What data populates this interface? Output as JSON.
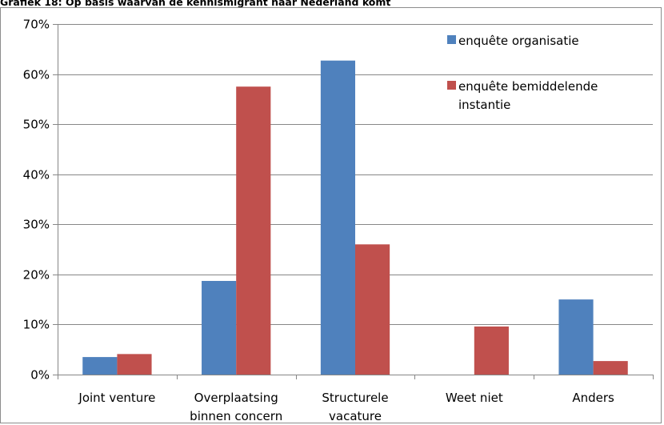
{
  "title": "Grafiek 18: Op basis waarvan de kennismigrant naar Nederland komt",
  "chart_data": {
    "type": "bar",
    "title": "Grafiek 18: Op basis waarvan de kennismigrant naar Nederland komt",
    "xlabel": "",
    "ylabel": "",
    "ylim": [
      0,
      70
    ],
    "y_ticks": [
      "0%",
      "10%",
      "20%",
      "30%",
      "40%",
      "50%",
      "60%",
      "70%"
    ],
    "y_tick_values": [
      0,
      10,
      20,
      30,
      40,
      50,
      60,
      70
    ],
    "categories": [
      [
        "Joint venture"
      ],
      [
        "Overplaatsing",
        "binnen concern"
      ],
      [
        "Structurele",
        "vacature"
      ],
      [
        "Weet niet"
      ],
      [
        "Anders"
      ]
    ],
    "series": [
      {
        "name": "enquête organisatie",
        "color": "#4f81bd",
        "values": [
          3.5,
          18.7,
          62.7,
          0,
          15.0
        ]
      },
      {
        "name": "enquête bemiddelende instantie",
        "color": "#c0504d",
        "values": [
          4.1,
          57.5,
          26.0,
          9.6,
          2.7
        ]
      }
    ],
    "legend": {
      "placement": "top-right",
      "entries": [
        {
          "lines": [
            "enquête organisatie"
          ],
          "color": "#4f81bd"
        },
        {
          "lines": [
            "enquête bemiddelende",
            "instantie"
          ],
          "color": "#c0504d"
        }
      ]
    },
    "grid": true
  }
}
